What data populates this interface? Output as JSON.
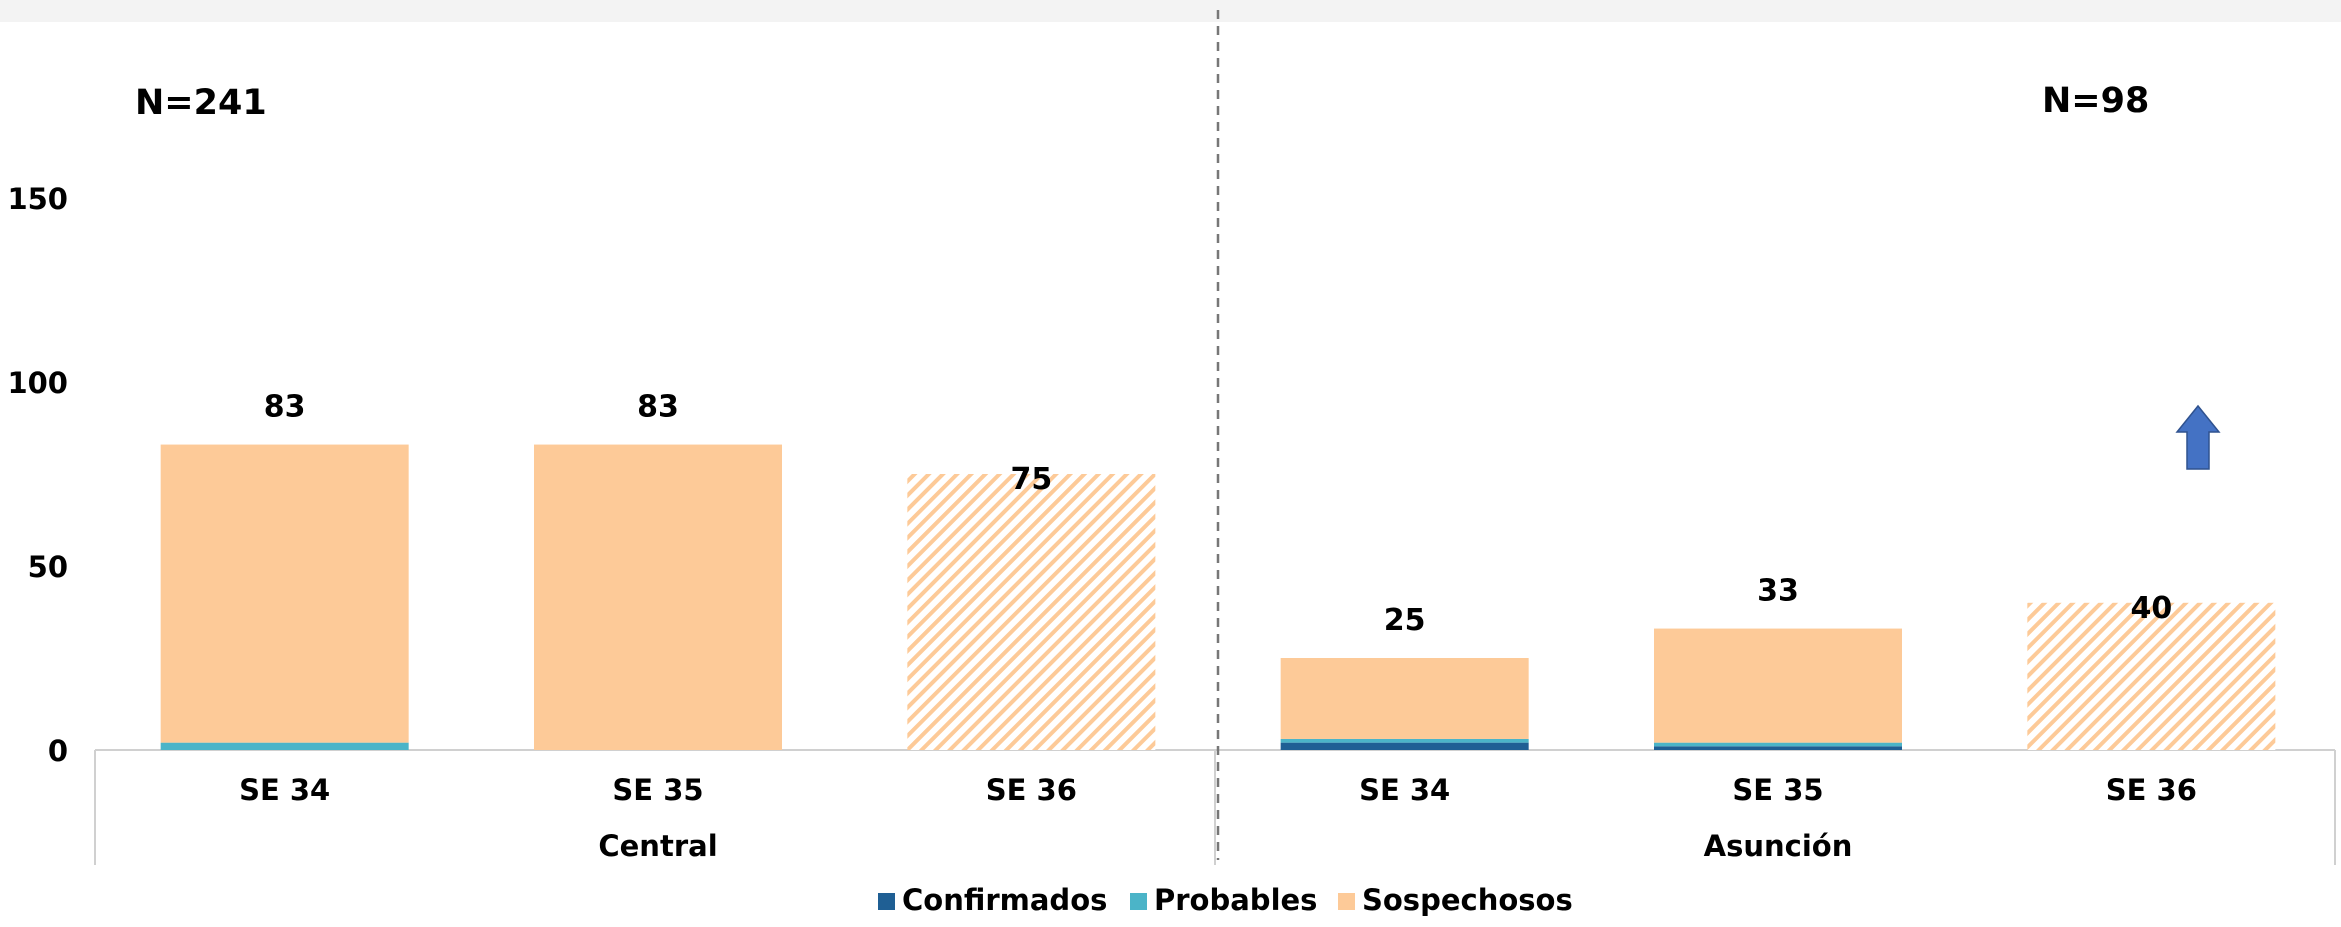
{
  "chart_data": {
    "type": "bar",
    "stacked": true,
    "groups": [
      {
        "name": "Central",
        "n_label": "N=241",
        "categories": [
          "SE 34",
          "SE 35",
          "SE 36"
        ],
        "totals": [
          83,
          83,
          75
        ]
      },
      {
        "name": "Asunción",
        "n_label": "N=98",
        "categories": [
          "SE 34",
          "SE 35",
          "SE 36"
        ],
        "totals": [
          25,
          33,
          40
        ]
      }
    ],
    "series": [
      {
        "name": "Confirmados",
        "color": "#1f5f94",
        "values": [
          0,
          0,
          0,
          2,
          1,
          0
        ]
      },
      {
        "name": "Probables",
        "color": "#4bb4c8",
        "values": [
          2,
          0,
          0,
          1,
          1,
          0
        ]
      },
      {
        "name": "Sospechosos",
        "color": "#fdca98",
        "values": [
          81,
          83,
          75,
          22,
          31,
          40
        ]
      }
    ],
    "hatched_categories": [
      "SE 36"
    ],
    "yticks": [
      0,
      50,
      100,
      150
    ],
    "ylim": [
      0,
      160
    ],
    "grid": false,
    "legend_position": "bottom",
    "annotation": "up-arrow-icon"
  }
}
